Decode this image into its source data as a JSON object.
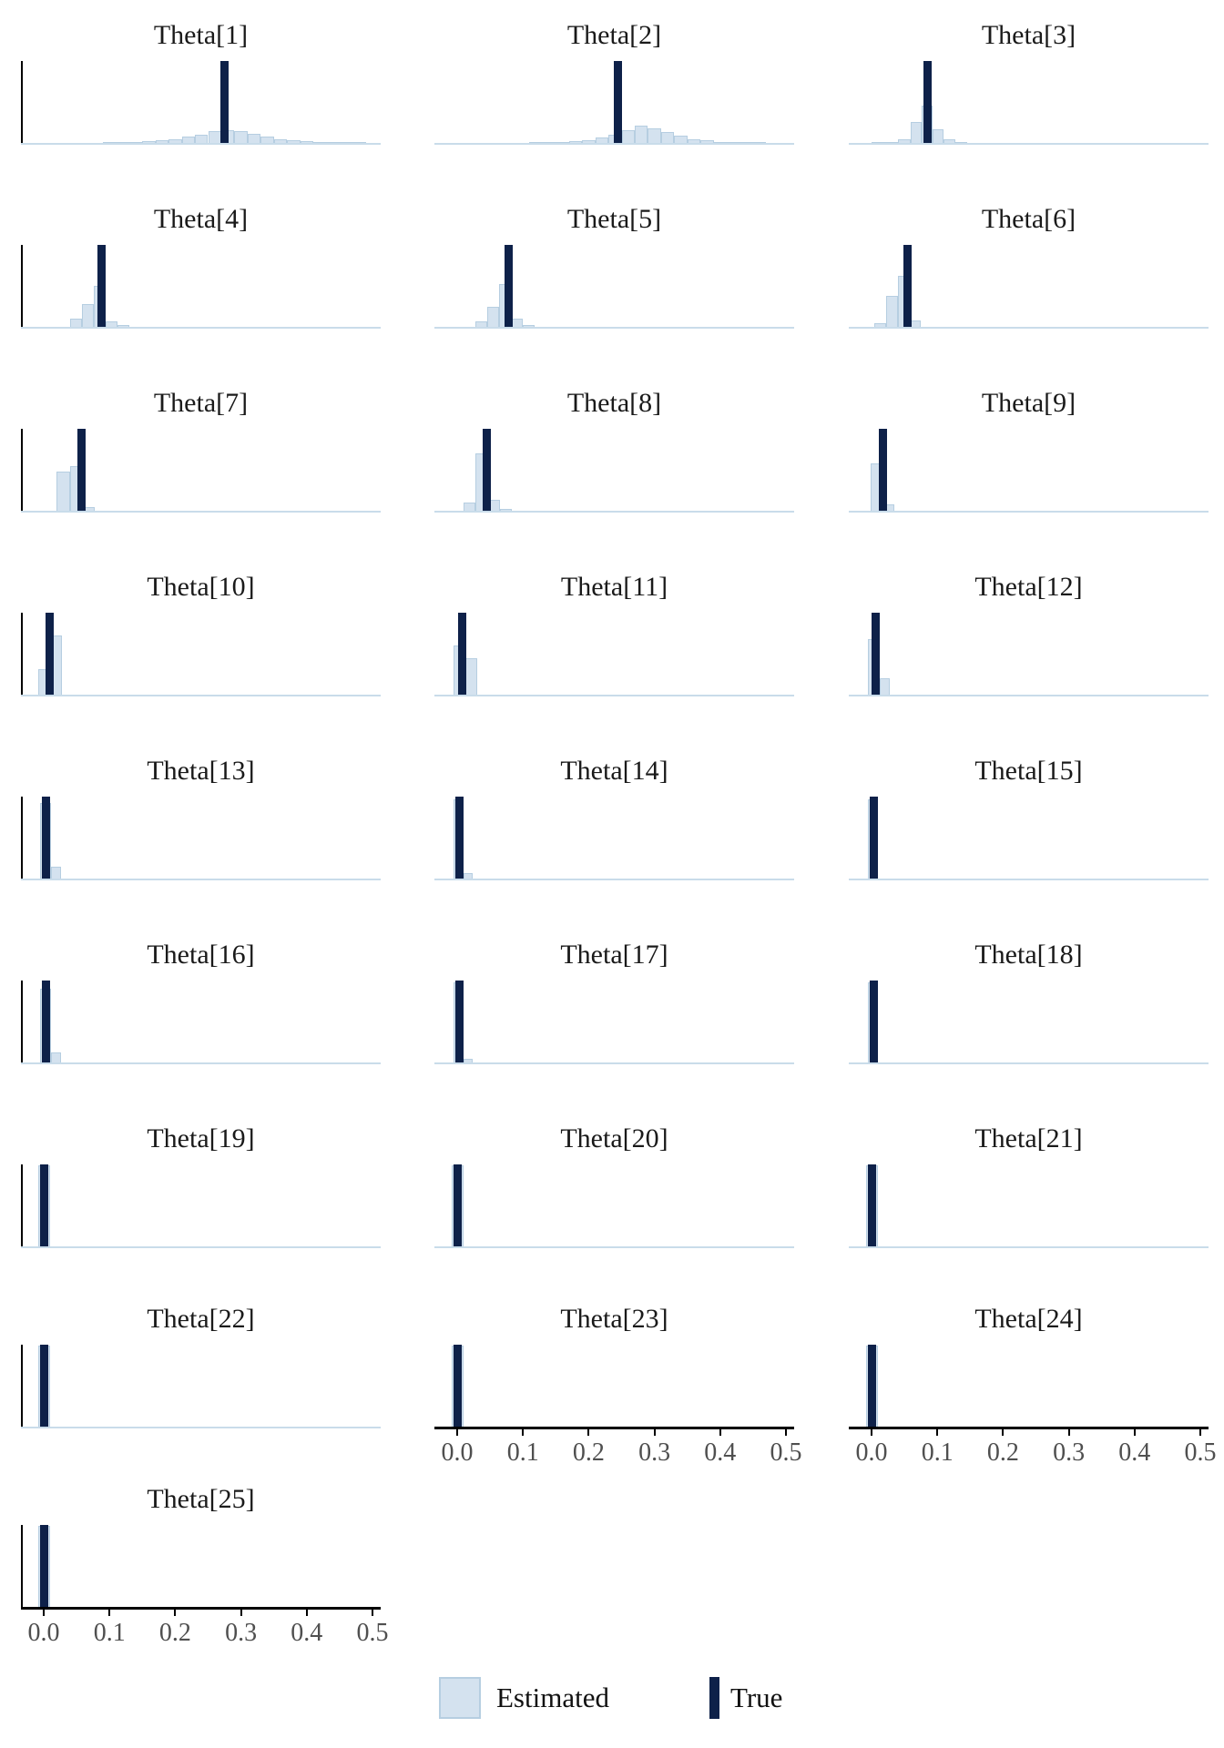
{
  "figure_title": "",
  "chart_data": {
    "type": "bar",
    "subtype": "histogram_small_multiples",
    "description": "Grid of 25 posterior histograms (Estimated) with a full-height vertical bar marking the True value of each Theta parameter.",
    "grid": {
      "columns": 3,
      "rows": 9
    },
    "xlabel": "",
    "ylabel": "",
    "xlim": [
      -0.035,
      0.545
    ],
    "x_ticks": [
      "0.0",
      "0.1",
      "0.2",
      "0.3",
      "0.4",
      "0.5"
    ],
    "x_tick_values": [
      0.0,
      0.1,
      0.2,
      0.3,
      0.4,
      0.5
    ],
    "grid_lines": "off",
    "legend_position": "bottom-center",
    "legend": [
      {
        "label": "Estimated",
        "swatch": "filled-square",
        "color": "#d4e2ef",
        "border": "#b6cee1"
      },
      {
        "label": "True",
        "swatch": "vertical-bar",
        "color": "#0e2149"
      }
    ],
    "colors": {
      "estimated_fill": "#d4e2ef",
      "estimated_border": "#b6cee1",
      "true_bar": "#0e2149",
      "baseline": "#c9dcea",
      "axis": "#000000",
      "tick_label": "#4f4f4f",
      "title": "#1a1a1a",
      "background": "#ffffff"
    },
    "bin_height_units": "fraction_of_panel_height",
    "panels": [
      {
        "title": "Theta[1]",
        "true_value": 0.275,
        "y_axis_line": true,
        "x_axis": false,
        "bins": [
          [
            0.09,
            0.11,
            0.005
          ],
          [
            0.11,
            0.13,
            0.008
          ],
          [
            0.13,
            0.15,
            0.012
          ],
          [
            0.15,
            0.17,
            0.02
          ],
          [
            0.17,
            0.19,
            0.03
          ],
          [
            0.19,
            0.21,
            0.05
          ],
          [
            0.21,
            0.23,
            0.075
          ],
          [
            0.23,
            0.25,
            0.105
          ],
          [
            0.25,
            0.27,
            0.14
          ],
          [
            0.27,
            0.29,
            0.16
          ],
          [
            0.29,
            0.31,
            0.145
          ],
          [
            0.31,
            0.33,
            0.115
          ],
          [
            0.33,
            0.35,
            0.08
          ],
          [
            0.35,
            0.37,
            0.05
          ],
          [
            0.37,
            0.39,
            0.032
          ],
          [
            0.39,
            0.41,
            0.02
          ],
          [
            0.41,
            0.43,
            0.012
          ],
          [
            0.43,
            0.45,
            0.008
          ],
          [
            0.45,
            0.47,
            0.005
          ],
          [
            0.47,
            0.49,
            0.003
          ]
        ]
      },
      {
        "title": "Theta[2]",
        "true_value": 0.245,
        "y_axis_line": false,
        "x_axis": false,
        "bins": [
          [
            0.11,
            0.13,
            0.004
          ],
          [
            0.13,
            0.15,
            0.007
          ],
          [
            0.15,
            0.17,
            0.012
          ],
          [
            0.17,
            0.19,
            0.02
          ],
          [
            0.19,
            0.21,
            0.038
          ],
          [
            0.21,
            0.23,
            0.065
          ],
          [
            0.23,
            0.25,
            0.1
          ],
          [
            0.25,
            0.27,
            0.155
          ],
          [
            0.27,
            0.29,
            0.21
          ],
          [
            0.29,
            0.31,
            0.18
          ],
          [
            0.31,
            0.33,
            0.13
          ],
          [
            0.33,
            0.35,
            0.085
          ],
          [
            0.35,
            0.37,
            0.05
          ],
          [
            0.37,
            0.39,
            0.028
          ],
          [
            0.39,
            0.41,
            0.015
          ],
          [
            0.41,
            0.43,
            0.009
          ],
          [
            0.43,
            0.45,
            0.005
          ],
          [
            0.45,
            0.47,
            0.003
          ]
        ]
      },
      {
        "title": "Theta[3]",
        "true_value": 0.085,
        "y_axis_line": false,
        "x_axis": false,
        "bins": [
          [
            0.0,
            0.02,
            0.012
          ],
          [
            0.02,
            0.04,
            0.01
          ],
          [
            0.04,
            0.06,
            0.05
          ],
          [
            0.06,
            0.076,
            0.26
          ],
          [
            0.076,
            0.093,
            0.46
          ],
          [
            0.093,
            0.11,
            0.17
          ],
          [
            0.11,
            0.127,
            0.05
          ],
          [
            0.127,
            0.145,
            0.015
          ]
        ]
      },
      {
        "title": "Theta[4]",
        "true_value": 0.088,
        "y_axis_line": true,
        "x_axis": false,
        "bins": [
          [
            0.04,
            0.058,
            0.1
          ],
          [
            0.058,
            0.076,
            0.28
          ],
          [
            0.076,
            0.094,
            0.5
          ],
          [
            0.094,
            0.112,
            0.07
          ],
          [
            0.112,
            0.13,
            0.02
          ]
        ]
      },
      {
        "title": "Theta[5]",
        "true_value": 0.078,
        "y_axis_line": false,
        "x_axis": false,
        "bins": [
          [
            0.028,
            0.046,
            0.07
          ],
          [
            0.046,
            0.064,
            0.25
          ],
          [
            0.064,
            0.082,
            0.52
          ],
          [
            0.082,
            0.1,
            0.1
          ],
          [
            0.1,
            0.118,
            0.02
          ]
        ]
      },
      {
        "title": "Theta[6]",
        "true_value": 0.055,
        "y_axis_line": false,
        "x_axis": false,
        "bins": [
          [
            0.004,
            0.022,
            0.05
          ],
          [
            0.022,
            0.04,
            0.38
          ],
          [
            0.04,
            0.057,
            0.62
          ],
          [
            0.057,
            0.075,
            0.08
          ]
        ]
      },
      {
        "title": "Theta[7]",
        "true_value": 0.057,
        "y_axis_line": true,
        "x_axis": false,
        "bins": [
          [
            0.02,
            0.04,
            0.48
          ],
          [
            0.04,
            0.059,
            0.55
          ],
          [
            0.059,
            0.077,
            0.05
          ]
        ]
      },
      {
        "title": "Theta[8]",
        "true_value": 0.045,
        "y_axis_line": false,
        "x_axis": false,
        "bins": [
          [
            0.01,
            0.028,
            0.1
          ],
          [
            0.028,
            0.047,
            0.7
          ],
          [
            0.047,
            0.065,
            0.13
          ],
          [
            0.065,
            0.083,
            0.02
          ]
        ]
      },
      {
        "title": "Theta[9]",
        "true_value": 0.018,
        "y_axis_line": false,
        "x_axis": false,
        "bins": [
          [
            -0.002,
            0.019,
            0.58
          ],
          [
            0.019,
            0.035,
            0.08
          ]
        ]
      },
      {
        "title": "Theta[10]",
        "true_value": 0.009,
        "y_axis_line": true,
        "x_axis": false,
        "bins": [
          [
            -0.008,
            0.013,
            0.31
          ],
          [
            0.013,
            0.028,
            0.72
          ]
        ]
      },
      {
        "title": "Theta[11]",
        "true_value": 0.008,
        "y_axis_line": false,
        "x_axis": false,
        "bins": [
          [
            -0.005,
            0.013,
            0.6
          ],
          [
            0.013,
            0.03,
            0.44
          ]
        ]
      },
      {
        "title": "Theta[12]",
        "true_value": 0.006,
        "y_axis_line": false,
        "x_axis": false,
        "bins": [
          [
            -0.005,
            0.012,
            0.68
          ],
          [
            0.012,
            0.028,
            0.2
          ]
        ]
      },
      {
        "title": "Theta[13]",
        "true_value": 0.004,
        "y_axis_line": true,
        "x_axis": false,
        "bins": [
          [
            -0.006,
            0.011,
            0.92
          ],
          [
            0.011,
            0.026,
            0.14
          ]
        ]
      },
      {
        "title": "Theta[14]",
        "true_value": 0.004,
        "y_axis_line": false,
        "x_axis": false,
        "bins": [
          [
            -0.006,
            0.01,
            0.97
          ],
          [
            0.01,
            0.024,
            0.07
          ]
        ]
      },
      {
        "title": "Theta[15]",
        "true_value": 0.003,
        "y_axis_line": false,
        "x_axis": false,
        "bins": [
          [
            -0.006,
            0.01,
            0.97
          ]
        ]
      },
      {
        "title": "Theta[16]",
        "true_value": 0.004,
        "y_axis_line": true,
        "x_axis": false,
        "bins": [
          [
            -0.006,
            0.011,
            0.9
          ],
          [
            0.011,
            0.026,
            0.12
          ]
        ]
      },
      {
        "title": "Theta[17]",
        "true_value": 0.003,
        "y_axis_line": false,
        "x_axis": false,
        "bins": [
          [
            -0.006,
            0.01,
            0.98
          ],
          [
            0.01,
            0.024,
            0.05
          ]
        ]
      },
      {
        "title": "Theta[18]",
        "true_value": 0.003,
        "y_axis_line": false,
        "x_axis": false,
        "bins": [
          [
            -0.006,
            0.009,
            0.98
          ]
        ]
      },
      {
        "title": "Theta[19]",
        "true_value": 0.001,
        "y_axis_line": true,
        "x_axis": false,
        "bins": [
          [
            -0.008,
            0.01,
            0.99
          ]
        ]
      },
      {
        "title": "Theta[20]",
        "true_value": 0.001,
        "y_axis_line": false,
        "x_axis": false,
        "bins": [
          [
            -0.008,
            0.01,
            0.99
          ]
        ]
      },
      {
        "title": "Theta[21]",
        "true_value": 0.001,
        "y_axis_line": false,
        "x_axis": false,
        "bins": [
          [
            -0.008,
            0.01,
            0.99
          ]
        ]
      },
      {
        "title": "Theta[22]",
        "true_value": 0.001,
        "y_axis_line": true,
        "x_axis": false,
        "bins": [
          [
            -0.008,
            0.01,
            0.99
          ]
        ]
      },
      {
        "title": "Theta[23]",
        "true_value": 0.001,
        "y_axis_line": false,
        "x_axis": true,
        "bins": [
          [
            -0.008,
            0.01,
            0.99
          ]
        ]
      },
      {
        "title": "Theta[24]",
        "true_value": 0.001,
        "y_axis_line": false,
        "x_axis": true,
        "bins": [
          [
            -0.008,
            0.01,
            0.99
          ]
        ]
      },
      {
        "title": "Theta[25]",
        "true_value": 0.001,
        "y_axis_line": true,
        "x_axis": true,
        "bins": [
          [
            -0.008,
            0.01,
            0.99
          ]
        ]
      }
    ]
  }
}
